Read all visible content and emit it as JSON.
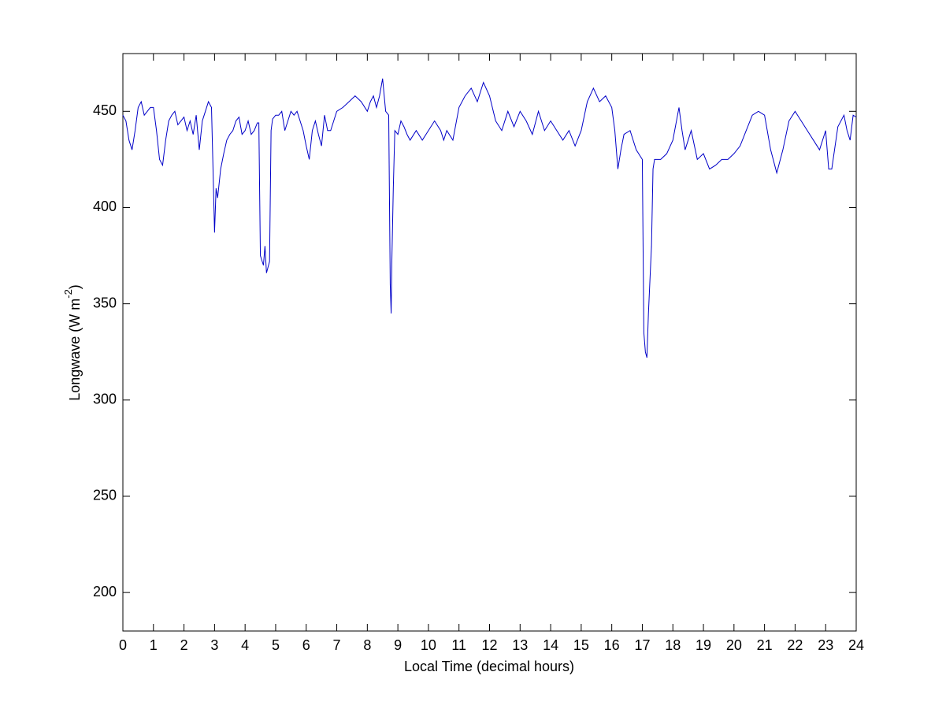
{
  "chart_data": {
    "type": "line",
    "x_label": "Local Time (decimal hours)",
    "y_label_parts": [
      "Longwave (W m",
      "-2",
      ")"
    ],
    "xlim": [
      0,
      24
    ],
    "xticks": [
      0,
      1,
      2,
      3,
      4,
      5,
      6,
      7,
      8,
      9,
      10,
      11,
      12,
      13,
      14,
      15,
      16,
      17,
      18,
      19,
      20,
      21,
      22,
      23,
      24
    ],
    "ylim": [
      180,
      480
    ],
    "yticks": [
      200,
      250,
      300,
      350,
      400,
      450
    ],
    "grid": false,
    "series": [
      {
        "color": "#0000c8",
        "x": [
          0,
          0.1,
          0.2,
          0.3,
          0.4,
          0.5,
          0.6,
          0.7,
          0.8,
          0.9,
          1.0,
          1.1,
          1.2,
          1.3,
          1.4,
          1.5,
          1.6,
          1.7,
          1.8,
          1.9,
          2.0,
          2.1,
          2.2,
          2.3,
          2.4,
          2.5,
          2.6,
          2.7,
          2.8,
          2.9,
          2.95,
          3.0,
          3.05,
          3.1,
          3.2,
          3.3,
          3.4,
          3.5,
          3.6,
          3.7,
          3.8,
          3.9,
          4.0,
          4.1,
          4.2,
          4.3,
          4.4,
          4.45,
          4.5,
          4.6,
          4.65,
          4.7,
          4.8,
          4.85,
          4.9,
          5.0,
          5.1,
          5.2,
          5.3,
          5.4,
          5.5,
          5.6,
          5.7,
          5.8,
          5.9,
          6.0,
          6.1,
          6.2,
          6.3,
          6.4,
          6.5,
          6.6,
          6.7,
          6.8,
          6.9,
          7.0,
          7.2,
          7.4,
          7.6,
          7.8,
          8.0,
          8.1,
          8.2,
          8.3,
          8.4,
          8.5,
          8.6,
          8.7,
          8.75,
          8.78,
          8.8,
          8.85,
          8.9,
          9.0,
          9.1,
          9.2,
          9.3,
          9.4,
          9.6,
          9.8,
          10.0,
          10.2,
          10.4,
          10.5,
          10.6,
          10.8,
          11.0,
          11.2,
          11.4,
          11.6,
          11.8,
          12.0,
          12.2,
          12.4,
          12.6,
          12.8,
          13.0,
          13.2,
          13.4,
          13.6,
          13.8,
          14.0,
          14.2,
          14.4,
          14.6,
          14.8,
          15.0,
          15.2,
          15.4,
          15.6,
          15.8,
          16.0,
          16.1,
          16.2,
          16.3,
          16.4,
          16.6,
          16.8,
          17.0,
          17.05,
          17.1,
          17.15,
          17.2,
          17.3,
          17.35,
          17.4,
          17.6,
          17.8,
          18.0,
          18.2,
          18.3,
          18.4,
          18.6,
          18.8,
          19.0,
          19.2,
          19.4,
          19.6,
          19.8,
          20.0,
          20.2,
          20.4,
          20.6,
          20.8,
          21.0,
          21.2,
          21.4,
          21.6,
          21.8,
          22.0,
          22.2,
          22.4,
          22.6,
          22.8,
          23.0,
          23.1,
          23.2,
          23.4,
          23.6,
          23.7,
          23.8,
          23.9,
          24.0
        ],
        "values": [
          448,
          445,
          435,
          430,
          440,
          452,
          455,
          448,
          450,
          452,
          452,
          440,
          425,
          422,
          435,
          445,
          448,
          450,
          443,
          445,
          447,
          440,
          445,
          438,
          448,
          430,
          445,
          450,
          455,
          452,
          420,
          387,
          410,
          405,
          420,
          428,
          435,
          438,
          440,
          445,
          447,
          438,
          440,
          445,
          438,
          440,
          444,
          444,
          375,
          370,
          380,
          366,
          372,
          440,
          446,
          448,
          448,
          450,
          440,
          445,
          450,
          448,
          450,
          445,
          440,
          432,
          425,
          440,
          445,
          438,
          432,
          448,
          440,
          440,
          445,
          450,
          452,
          455,
          458,
          455,
          450,
          455,
          458,
          452,
          458,
          467,
          450,
          448,
          360,
          345,
          370,
          410,
          440,
          438,
          445,
          442,
          438,
          435,
          440,
          435,
          440,
          445,
          440,
          435,
          440,
          435,
          452,
          458,
          462,
          455,
          465,
          458,
          445,
          440,
          450,
          442,
          450,
          445,
          438,
          450,
          440,
          445,
          440,
          435,
          440,
          432,
          440,
          455,
          462,
          455,
          458,
          452,
          440,
          420,
          430,
          438,
          440,
          430,
          425,
          335,
          325,
          322,
          345,
          380,
          420,
          425,
          425,
          428,
          435,
          452,
          440,
          430,
          440,
          425,
          428,
          420,
          422,
          425,
          425,
          428,
          432,
          440,
          448,
          450,
          448,
          430,
          418,
          430,
          445,
          450,
          445,
          440,
          435,
          430,
          440,
          420,
          420,
          442,
          448,
          440,
          435,
          448,
          447
        ]
      }
    ]
  }
}
